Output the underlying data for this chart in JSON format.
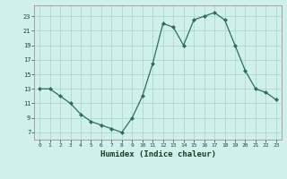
{
  "x": [
    0,
    1,
    2,
    3,
    4,
    5,
    6,
    7,
    8,
    9,
    10,
    11,
    12,
    13,
    14,
    15,
    16,
    17,
    18,
    19,
    20,
    21,
    22,
    23
  ],
  "y": [
    13,
    13,
    12,
    11,
    9.5,
    8.5,
    8,
    7.5,
    7,
    9,
    12,
    16.5,
    22,
    21.5,
    19,
    22.5,
    23,
    23.5,
    22.5,
    19,
    15.5,
    13,
    12.5,
    11.5
  ],
  "line_color": "#2e6e5e",
  "marker_color": "#2e6e5e",
  "bg_color": "#cff0eb",
  "grid_color": "#b0d8d2",
  "xlabel": "Humidex (Indice chaleur)",
  "xlim": [
    -0.5,
    23.5
  ],
  "ylim": [
    6,
    24.5
  ],
  "yticks": [
    7,
    9,
    11,
    13,
    15,
    17,
    19,
    21,
    23
  ],
  "xticks": [
    0,
    1,
    2,
    3,
    4,
    5,
    6,
    7,
    8,
    9,
    10,
    11,
    12,
    13,
    14,
    15,
    16,
    17,
    18,
    19,
    20,
    21,
    22,
    23
  ]
}
